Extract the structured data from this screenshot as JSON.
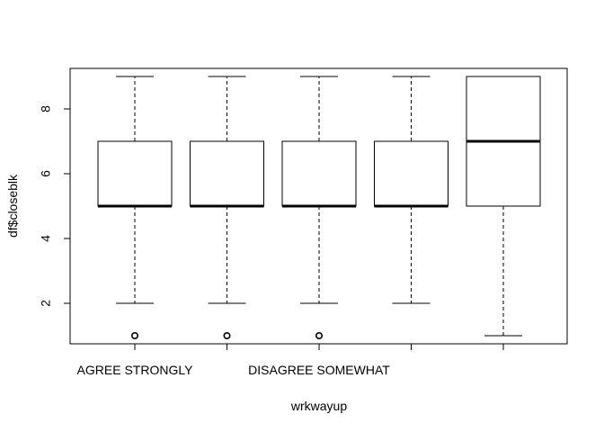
{
  "chart_data": {
    "type": "boxplot",
    "xlabel": "wrkwayup",
    "ylabel": "df$closeblk",
    "ylim": [
      0.75,
      9.25
    ],
    "yticks": [
      2,
      4,
      6,
      8
    ],
    "x_tick_labels_shown": [
      "AGREE STRONGLY",
      "",
      "DISAGREE SOMEWHAT",
      "",
      ""
    ],
    "boxes": [
      {
        "whisker_low": 2,
        "q1": 5,
        "median": 5,
        "q3": 7,
        "whisker_high": 9,
        "outliers": [
          1
        ]
      },
      {
        "whisker_low": 2,
        "q1": 5,
        "median": 5,
        "q3": 7,
        "whisker_high": 9,
        "outliers": [
          1
        ]
      },
      {
        "whisker_low": 2,
        "q1": 5,
        "median": 5,
        "q3": 7,
        "whisker_high": 9,
        "outliers": [
          1
        ]
      },
      {
        "whisker_low": 2,
        "q1": 5,
        "median": 5,
        "q3": 7,
        "whisker_high": 9,
        "outliers": []
      },
      {
        "whisker_low": 1,
        "q1": 5,
        "median": 7,
        "q3": 9,
        "whisker_high": 9,
        "outliers": []
      }
    ]
  }
}
